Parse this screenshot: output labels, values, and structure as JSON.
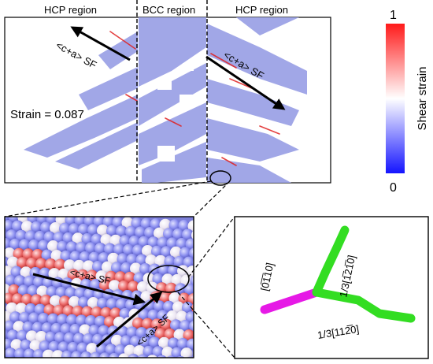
{
  "top_panel": {
    "region_labels": [
      "HCP region",
      "BCC region",
      "HCP region"
    ],
    "sf_label_left": "<c+a> SF",
    "sf_label_right": "<c+a> SF",
    "strain_text": "Strain = 0.087"
  },
  "colorbar": {
    "max_label": "1",
    "min_label": "0",
    "title": "Shear strain",
    "colors": [
      "#1414ff",
      "#ffffff",
      "#ff1a1a"
    ]
  },
  "zoom_panel": {
    "sf_label_1": "<c+a> SF",
    "sf_label_2": "<c+a> SF"
  },
  "dislocation_panel": {
    "label_magenta": "[0̅1̅10]",
    "label_upper": "1/3[1̅21̅0]",
    "label_lower": "1/3[112̅0]",
    "segment_colors": {
      "magenta": "#e619e6",
      "green": "#33dd22"
    }
  }
}
